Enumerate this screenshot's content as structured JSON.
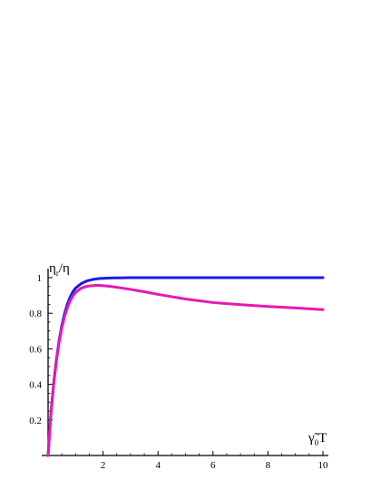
{
  "chart_data": {
    "type": "line",
    "ylabel": {
      "main": "η",
      "sub": "r",
      "rest": "/η"
    },
    "xlabel": {
      "main": "γ̃",
      "sub": "0",
      "rest": "T"
    },
    "xlim": [
      0,
      10
    ],
    "ylim": [
      0,
      1
    ],
    "x_ticks": [
      2,
      4,
      6,
      8,
      10
    ],
    "x_tick_labels": [
      "2",
      "4",
      "6",
      "8",
      "10"
    ],
    "y_ticks": [
      0.2,
      0.4,
      0.6,
      0.8,
      1
    ],
    "y_tick_labels": [
      "0.2",
      "0.4",
      "0.6",
      "0.8",
      "1"
    ],
    "grid": false,
    "series": [
      {
        "color": "#1a1ae6",
        "x": [
          0,
          0.1,
          0.2,
          0.3,
          0.4,
          0.5,
          0.6,
          0.7,
          0.8,
          0.9,
          1.0,
          1.2,
          1.4,
          1.6,
          1.8,
          2.0,
          2.3,
          2.6,
          3.0,
          3.5,
          4.0,
          5.0,
          6.0,
          7.0,
          8.0,
          9.0,
          10.0
        ],
        "values": [
          0,
          0.229,
          0.4,
          0.535,
          0.645,
          0.731,
          0.798,
          0.85,
          0.89,
          0.92,
          0.941,
          0.966,
          0.981,
          0.989,
          0.994,
          0.996,
          0.998,
          0.999,
          1.0,
          1.0,
          1.0,
          1.0,
          1.0,
          1.0,
          1.0,
          1.0,
          1.0
        ]
      },
      {
        "color": "#e619b4",
        "x": [
          0,
          0.1,
          0.2,
          0.3,
          0.4,
          0.5,
          0.6,
          0.7,
          0.8,
          0.9,
          1.0,
          1.2,
          1.4,
          1.6,
          1.8,
          2.0,
          2.2,
          2.5,
          3.0,
          3.5,
          4.0,
          5.0,
          6.0,
          7.0,
          8.0,
          9.0,
          10.0
        ],
        "values": [
          0,
          0.226,
          0.394,
          0.528,
          0.634,
          0.717,
          0.781,
          0.83,
          0.868,
          0.896,
          0.917,
          0.94,
          0.951,
          0.955,
          0.957,
          0.955,
          0.952,
          0.946,
          0.934,
          0.921,
          0.906,
          0.88,
          0.86,
          0.848,
          0.838,
          0.83,
          0.82
        ]
      }
    ]
  }
}
